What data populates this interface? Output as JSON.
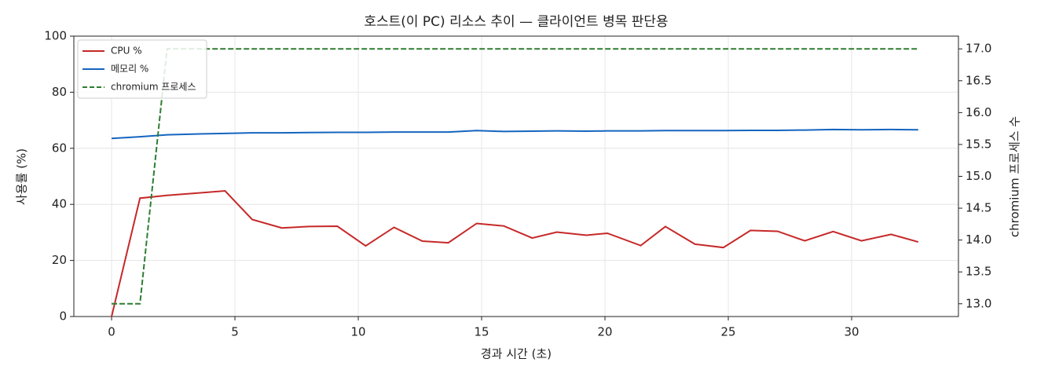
{
  "chart_data": {
    "type": "line",
    "title": "호스트(이 PC) 리소스 추이 — 클라이언트 병목 판단용",
    "xlabel": "경과 시간 (초)",
    "ylabel": "사용률 (%)",
    "y2label": "chromium 프로세스 수",
    "x": [
      0,
      1.15,
      2.25,
      3.45,
      4.6,
      5.7,
      6.9,
      8.0,
      9.15,
      10.3,
      11.45,
      12.6,
      13.65,
      14.8,
      15.9,
      17.05,
      18.05,
      19.25,
      20.1,
      21.45,
      22.45,
      23.65,
      24.8,
      25.9,
      27.0,
      28.1,
      29.25,
      30.4,
      31.6,
      32.7
    ],
    "series": [
      {
        "name": "CPU %",
        "color": "#c62828",
        "linestyle": "solid",
        "values": [
          0,
          42.2,
          43.2,
          44.0,
          44.8,
          34.6,
          31.6,
          32.1,
          32.2,
          25.2,
          31.8,
          26.9,
          26.3,
          33.2,
          32.3,
          28.0,
          30.1,
          29.0,
          29.7,
          25.3,
          32.1,
          25.8,
          24.6,
          30.7,
          30.4,
          27.0,
          30.3,
          27.0,
          29.3,
          26.6
        ]
      },
      {
        "name": "메모리 %",
        "color": "#1565c0",
        "linestyle": "solid",
        "values": [
          63.5,
          64.1,
          64.8,
          65.1,
          65.3,
          65.5,
          65.5,
          65.6,
          65.7,
          65.7,
          65.8,
          65.8,
          65.8,
          66.3,
          66.0,
          66.1,
          66.2,
          66.1,
          66.2,
          66.2,
          66.3,
          66.3,
          66.3,
          66.4,
          66.4,
          66.5,
          66.7,
          66.6,
          66.7,
          66.6
        ]
      },
      {
        "name": "chromium 프로세스",
        "color": "#2e7d32",
        "linestyle": "dashed",
        "axis": "y2",
        "values": [
          13,
          13,
          17,
          17,
          17,
          17,
          17,
          17,
          17,
          17,
          17,
          17,
          17,
          17,
          17,
          17,
          17,
          17,
          17,
          17,
          17,
          17,
          17,
          17,
          17,
          17,
          17,
          17,
          17,
          17
        ]
      }
    ],
    "xlim": [
      -1.53,
      34.33
    ],
    "xticks": [
      0,
      5,
      10,
      15,
      20,
      25,
      30
    ],
    "ylim": [
      0,
      100
    ],
    "yticks": [
      0,
      20,
      40,
      60,
      80,
      100
    ],
    "y2lim": [
      12.8,
      17.2
    ],
    "y2ticks": [
      {
        "value": 13,
        "label": "13.0"
      },
      13.5,
      {
        "value": 14,
        "label": "14.0"
      },
      14.5,
      {
        "value": 15,
        "label": "15.0"
      },
      15.5,
      {
        "value": 16,
        "label": "16.0"
      },
      16.5,
      {
        "value": 17,
        "label": "17.0"
      }
    ],
    "grid": true,
    "legend": "upper left"
  }
}
